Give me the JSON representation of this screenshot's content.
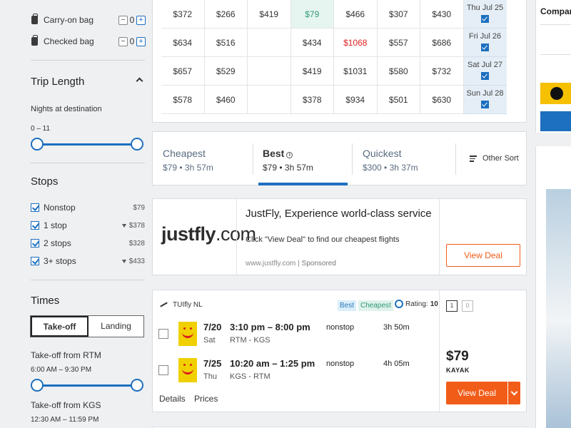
{
  "sidebar": {
    "bags": [
      {
        "label": "Carry-on bag",
        "value": "0",
        "minus": "−",
        "plus": "+"
      },
      {
        "label": "Checked bag",
        "value": "0",
        "minus": "−",
        "plus": "+"
      }
    ],
    "trip_length": {
      "title": "Trip Length",
      "label": "Nights at destination",
      "range": "0 – 11"
    },
    "stops": {
      "title": "Stops",
      "items": [
        {
          "label": "Nonstop",
          "price": "$79",
          "filter_icon": false
        },
        {
          "label": "1 stop",
          "price": "$378",
          "filter_icon": true
        },
        {
          "label": "2 stops",
          "price": "$328",
          "filter_icon": false
        },
        {
          "label": "3+ stops",
          "price": "$433",
          "filter_icon": true
        }
      ]
    },
    "times": {
      "title": "Times",
      "tabs": [
        "Take-off",
        "Landing"
      ],
      "active_tab": "Take-off",
      "takeoff_rtm_label": "Take-off from RTM",
      "takeoff_rtm_range": "6:00 AM – 9:30 PM",
      "takeoff_kgs_label": "Take-off from KGS",
      "takeoff_kgs_range": "12:30 AM – 11:59 PM"
    }
  },
  "matrix": {
    "rows": [
      {
        "cells": [
          "$372",
          "$266",
          "$419",
          "$79",
          "$466",
          "$307",
          "$430"
        ],
        "date": "Thu Jul 25"
      },
      {
        "cells": [
          "$634",
          "$516",
          "",
          "$434",
          "$1068",
          "$557",
          "$686"
        ],
        "date": "Fri Jul 26"
      },
      {
        "cells": [
          "$657",
          "$529",
          "",
          "$419",
          "$1031",
          "$580",
          "$732"
        ],
        "date": "Sat Jul 27"
      },
      {
        "cells": [
          "$578",
          "$460",
          "",
          "$378",
          "$934",
          "$501",
          "$630"
        ],
        "date": "Sun Jul 28"
      }
    ],
    "highlight_color": "#2f9b74",
    "expensive_color": "#dd2222"
  },
  "sort": {
    "tabs": [
      {
        "title": "Cheapest",
        "sub": "$79 • 3h 57m"
      },
      {
        "title": "Best",
        "sub": "$79 • 3h 57m"
      },
      {
        "title": "Quickest",
        "sub": "$300 • 3h 37m"
      }
    ],
    "active": "Best",
    "info_glyph": "i",
    "other": "Other Sort"
  },
  "ad": {
    "logo_main": "justfly",
    "logo_suffix": ".com",
    "title": "JustFly, Experience world-class service",
    "desc": "Click \"View Deal\" to find our cheapest flights",
    "url": "www.justfly.com",
    "sponsored": "Sponsored",
    "button": "View Deal"
  },
  "result": {
    "airline": "TUIfly NL",
    "badges": [
      "Best",
      "Cheapest"
    ],
    "rating_label": "Rating:",
    "rating_value": "10",
    "carry_on_count": "1",
    "checked_count": "0",
    "legs": [
      {
        "date": "7/20",
        "day": "Sat",
        "time": "3:10 pm – 8:00 pm",
        "route": "RTM - KGS",
        "stops": "nonstop",
        "duration": "3h 50m"
      },
      {
        "date": "7/25",
        "day": "Thu",
        "time": "10:20 am – 1:25 pm",
        "route": "KGS - RTM",
        "stops": "nonstop",
        "duration": "4h 05m"
      }
    ],
    "details": "Details",
    "prices": "Prices",
    "price": "$79",
    "provider": "KAYAK",
    "button": "View Deal",
    "accent": "#f25c19"
  },
  "right": {
    "compare": "Compare"
  }
}
